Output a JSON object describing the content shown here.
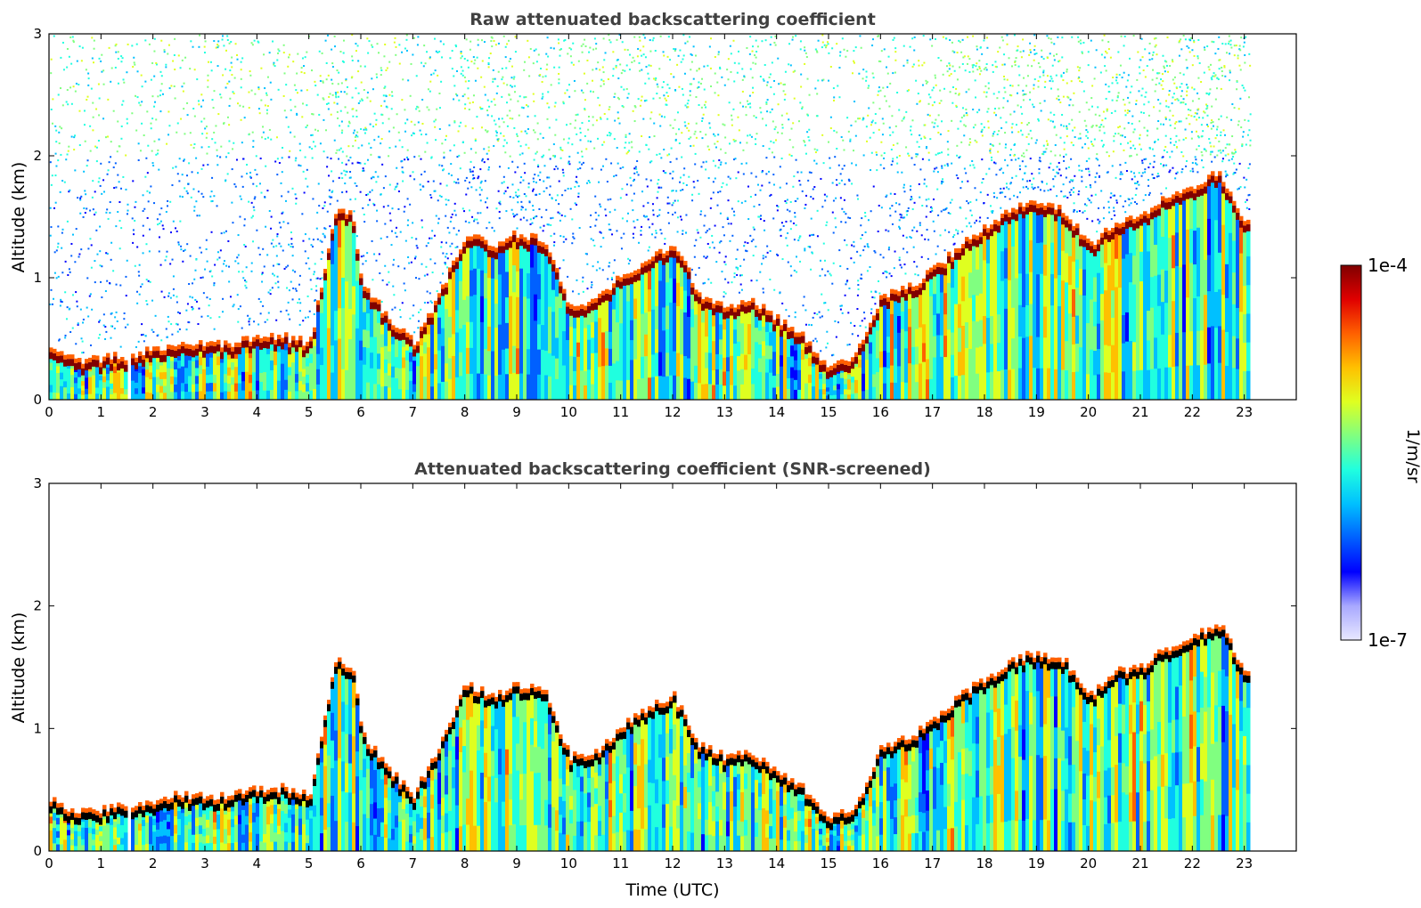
{
  "chart_data": [
    {
      "type": "heatmap",
      "title": "Raw attenuated backscattering coefficient",
      "xlabel": "",
      "ylabel": "Altitude (km)",
      "xlim": [
        0,
        24
      ],
      "ylim": [
        0,
        3
      ],
      "xticks": [
        "0",
        "1",
        "2",
        "3",
        "4",
        "5",
        "6",
        "7",
        "8",
        "9",
        "10",
        "11",
        "12",
        "13",
        "14",
        "15",
        "16",
        "17",
        "18",
        "19",
        "20",
        "21",
        "22",
        "23"
      ],
      "yticks": [
        "0",
        "1",
        "2",
        "3"
      ],
      "data_extent_hours": [
        0,
        23.15
      ],
      "boundary_layer_top_km": {
        "time_utc": [
          0,
          0.5,
          1,
          1.5,
          2,
          2.5,
          3,
          3.5,
          4,
          4.5,
          5,
          5.5,
          5.8,
          6,
          6.5,
          7,
          7.5,
          8,
          8.5,
          9,
          9.5,
          10,
          10.5,
          11,
          11.5,
          12,
          12.5,
          13,
          13.5,
          14,
          14.5,
          15,
          15.5,
          16,
          16.5,
          17,
          17.5,
          18,
          18.5,
          19,
          19.5,
          20,
          20.5,
          21,
          21.5,
          22,
          22.5,
          23,
          23.15
        ],
        "altitude_km": [
          0.35,
          0.25,
          0.28,
          0.3,
          0.35,
          0.4,
          0.38,
          0.4,
          0.45,
          0.45,
          0.4,
          1.5,
          1.45,
          0.9,
          0.6,
          0.4,
          0.8,
          1.3,
          1.2,
          1.3,
          1.25,
          0.7,
          0.75,
          0.95,
          1.1,
          1.2,
          0.8,
          0.7,
          0.75,
          0.6,
          0.45,
          0.2,
          0.3,
          0.8,
          0.85,
          1.0,
          1.2,
          1.35,
          1.5,
          1.55,
          1.5,
          1.2,
          1.4,
          1.45,
          1.6,
          1.7,
          1.8,
          1.4,
          1.55
        ]
      },
      "noise_gap_hours": [
        1.5,
        1.55
      ]
    },
    {
      "type": "heatmap",
      "title": "Attenuated backscattering coefficient (SNR-screened)",
      "xlabel": "Time (UTC)",
      "ylabel": "Altitude (km)",
      "xlim": [
        0,
        24
      ],
      "ylim": [
        0,
        3
      ],
      "xticks": [
        "0",
        "1",
        "2",
        "3",
        "4",
        "5",
        "6",
        "7",
        "8",
        "9",
        "10",
        "11",
        "12",
        "13",
        "14",
        "15",
        "16",
        "17",
        "18",
        "19",
        "20",
        "21",
        "22",
        "23"
      ],
      "yticks": [
        "0",
        "1",
        "2",
        "3"
      ],
      "data_extent_hours": [
        0,
        23.15
      ],
      "noise_gap_hours": [
        1.5,
        1.55
      ]
    }
  ],
  "colorbar": {
    "label": "1/m/sr",
    "max_label": "1e-4",
    "min_label": "1e-7",
    "colormap": "jet",
    "colors": [
      "#e8e8ff",
      "#a8a8ff",
      "#0000ff",
      "#0060ff",
      "#00c0ff",
      "#20ffdf",
      "#80ff80",
      "#dfff20",
      "#ffc000",
      "#ff6000",
      "#e00000",
      "#800000"
    ]
  }
}
